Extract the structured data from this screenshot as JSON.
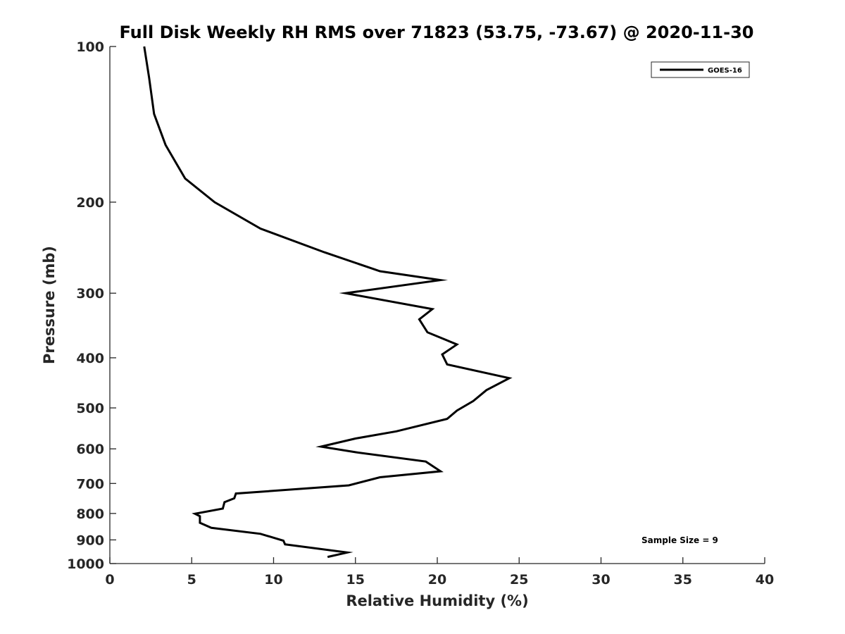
{
  "chart_data": {
    "type": "line",
    "title": "Full Disk Weekly RH RMS over 71823 (53.75, -73.67) @ 2020-11-30",
    "xlabel": "Relative Humidity (%)",
    "ylabel": "Pressure (mb)",
    "xlim": [
      0,
      40
    ],
    "ylim": [
      100,
      1000
    ],
    "y_scale": "log",
    "y_reversed": true,
    "x_ticks": [
      0,
      5,
      10,
      15,
      20,
      25,
      30,
      35,
      40
    ],
    "y_ticks": [
      100,
      200,
      300,
      400,
      500,
      600,
      700,
      800,
      900,
      1000
    ],
    "grid": false,
    "legend_position": "top-right",
    "series": [
      {
        "name": "GOES-16",
        "color": "#000000",
        "x": [
          2.1,
          2.4,
          2.7,
          3.4,
          4.6,
          6.4,
          9.2,
          13.1,
          16.5,
          20.2,
          14.4,
          19.7,
          18.9,
          19.4,
          21.2,
          20.3,
          20.6,
          24.4,
          23.0,
          22.2,
          21.2,
          20.6,
          17.5,
          15.0,
          12.9,
          15.0,
          19.3,
          20.2,
          16.5,
          14.6,
          7.7,
          7.6,
          7.0,
          6.9,
          5.2,
          5.5,
          5.5,
          6.2,
          9.2,
          10.6,
          10.7,
          14.5,
          13.3
        ],
        "y": [
          100,
          115,
          135,
          155,
          180,
          200,
          225,
          250,
          272,
          283,
          300,
          322,
          337,
          357,
          377,
          394,
          412,
          438,
          462,
          485,
          506,
          525,
          555,
          573,
          594,
          609,
          635,
          663,
          681,
          706,
          732,
          748,
          761,
          783,
          801,
          810,
          834,
          853,
          876,
          903,
          918,
          952,
          971
        ]
      }
    ],
    "annotations": [
      "Sample Size = 9"
    ]
  }
}
